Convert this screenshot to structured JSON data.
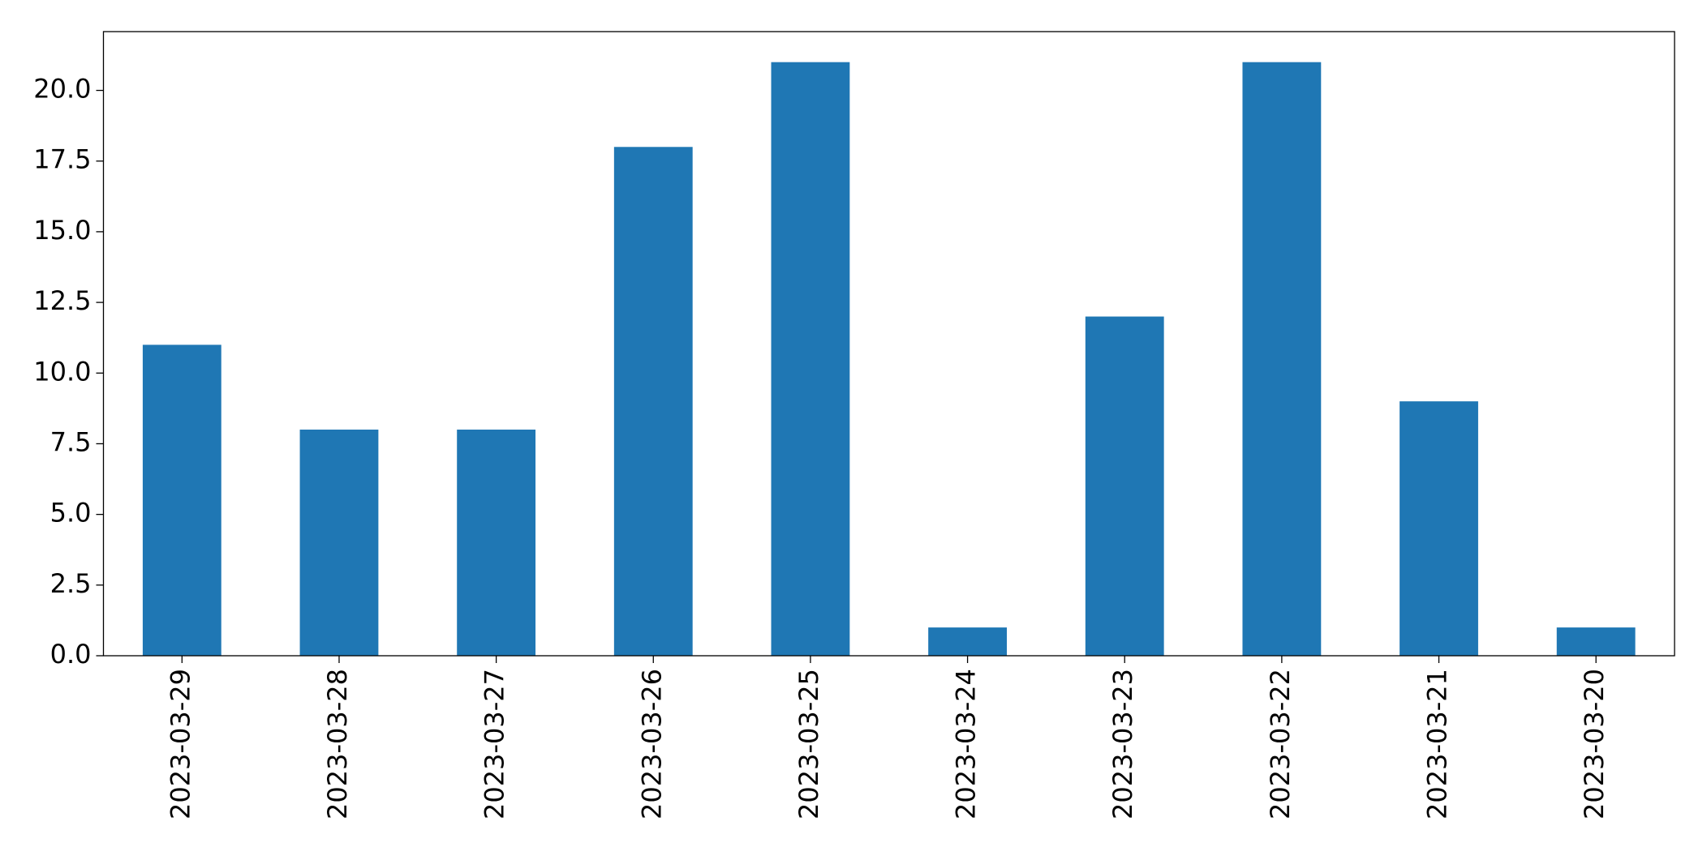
{
  "chart_data": {
    "type": "bar",
    "categories": [
      "2023-03-29",
      "2023-03-28",
      "2023-03-27",
      "2023-03-26",
      "2023-03-25",
      "2023-03-24",
      "2023-03-23",
      "2023-03-22",
      "2023-03-21",
      "2023-03-20"
    ],
    "values": [
      11,
      8,
      8,
      18,
      21,
      1,
      12,
      21,
      9,
      1
    ],
    "color": "#1f77b4",
    "ylim": [
      0,
      22.08
    ],
    "yticks": [
      {
        "value": 0,
        "label": "0.0"
      },
      {
        "value": 2.5,
        "label": "2.5"
      },
      {
        "value": 5,
        "label": "5.0"
      },
      {
        "value": 7.5,
        "label": "7.5"
      },
      {
        "value": 10,
        "label": "10.0"
      },
      {
        "value": 12.5,
        "label": "12.5"
      },
      {
        "value": 15,
        "label": "15.0"
      },
      {
        "value": 17.5,
        "label": "17.5"
      },
      {
        "value": 20,
        "label": "20.0"
      }
    ],
    "grid": false
  }
}
